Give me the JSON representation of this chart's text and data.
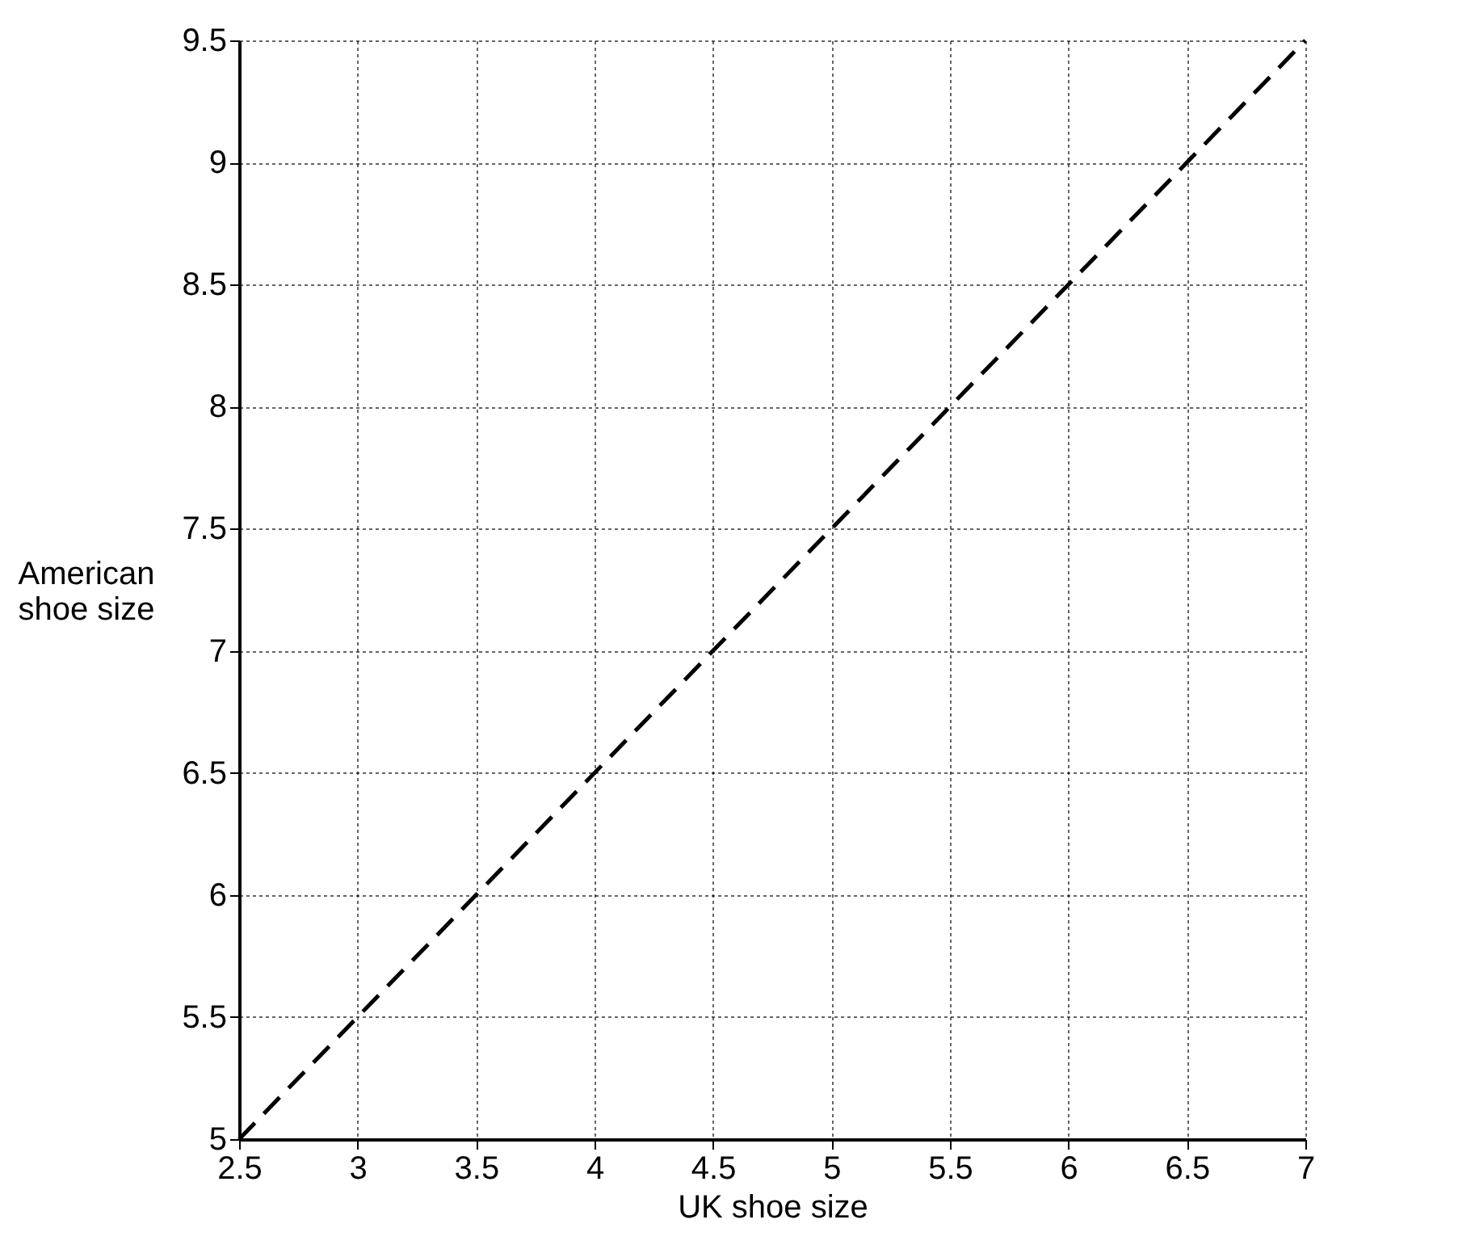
{
  "chart_data": {
    "type": "line",
    "xlabel": "UK shoe size",
    "ylabel": "American shoe size",
    "x": [
      2.5,
      7
    ],
    "values": [
      5,
      9.5
    ],
    "color": "#000000",
    "line_style": "dashed",
    "marker": "none",
    "xlim": [
      2.5,
      7
    ],
    "xticks": [
      2.5,
      3,
      3.5,
      4,
      4.5,
      5,
      5.5,
      6,
      6.5,
      7
    ],
    "ylim": [
      5,
      9.5
    ],
    "yticks": [
      5,
      5.5,
      6,
      6.5,
      7,
      7.5,
      8,
      8.5,
      9,
      9.5
    ],
    "grid": true
  }
}
